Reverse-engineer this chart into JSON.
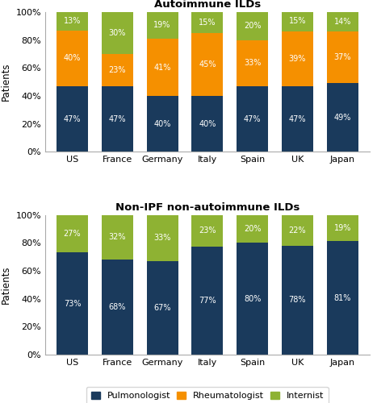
{
  "categories": [
    "US",
    "France",
    "Germany",
    "Italy",
    "Spain",
    "UK",
    "Japan"
  ],
  "autoimmune": {
    "pulmonologist": [
      47,
      47,
      40,
      40,
      47,
      47,
      49
    ],
    "rheumatologist": [
      40,
      23,
      41,
      45,
      33,
      39,
      37
    ],
    "internist": [
      13,
      30,
      19,
      15,
      20,
      15,
      14
    ]
  },
  "non_ipf": {
    "pulmonologist": [
      73,
      68,
      67,
      77,
      80,
      78,
      81
    ],
    "internist": [
      27,
      32,
      33,
      23,
      20,
      22,
      19
    ]
  },
  "colors": {
    "pulmonologist": "#1a3a5c",
    "rheumatologist": "#f59000",
    "internist": "#8eb233"
  },
  "title1": "Autoimmune ILDs",
  "title2": "Non-IPF non-autoimmune ILDs",
  "ylabel": "Patients",
  "yticks": [
    0,
    20,
    40,
    60,
    80,
    100
  ],
  "yticklabels": [
    "0%",
    "20%",
    "40%",
    "60%",
    "80%",
    "100%"
  ],
  "legend_labels": [
    "Pulmonologist",
    "Rheumatologist",
    "Internist"
  ]
}
